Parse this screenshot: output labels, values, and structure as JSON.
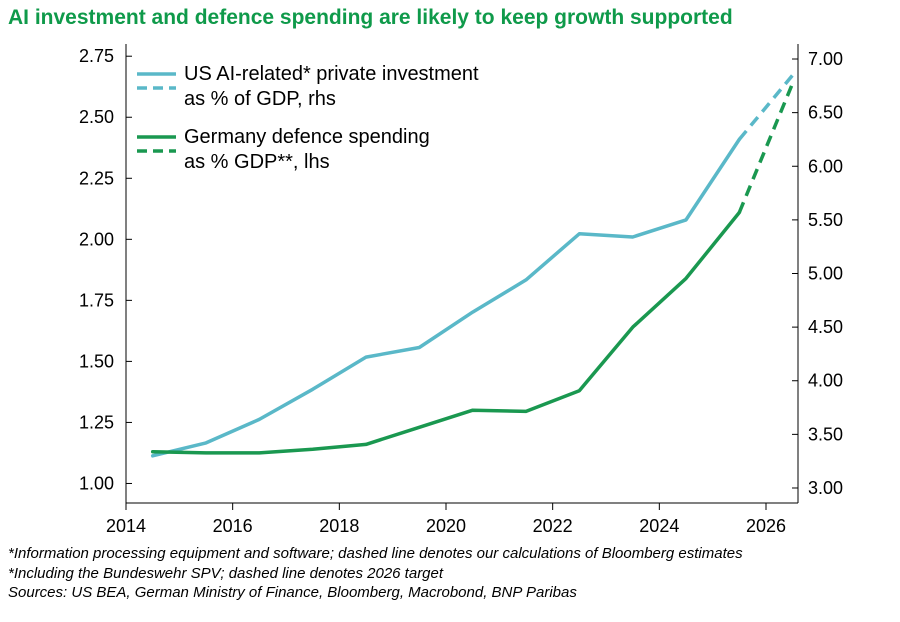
{
  "title": "AI investment and defence spending are likely to keep growth supported",
  "chart_data": {
    "type": "line",
    "x_ticks": [
      2014,
      2016,
      2018,
      2020,
      2022,
      2024,
      2026
    ],
    "xlim": [
      2014,
      2026.6
    ],
    "left_axis": {
      "ylim": [
        0.92,
        2.8
      ],
      "ticks": [
        "1.00",
        "1.25",
        "1.50",
        "1.75",
        "2.00",
        "2.25",
        "2.50",
        "2.75"
      ]
    },
    "right_axis": {
      "ylim": [
        2.86,
        7.14
      ],
      "ticks": [
        "3.00",
        "3.50",
        "4.00",
        "4.50",
        "5.00",
        "5.50",
        "6.00",
        "6.50",
        "7.00"
      ]
    },
    "series": [
      {
        "name": "US AI-related* private investment as % of GDP, rhs",
        "legend_lines": [
          "US AI-related* private investment",
          "as % of GDP, rhs"
        ],
        "axis": "right",
        "color": "#5ab8c8",
        "x": [
          2014.5,
          2015.5,
          2016.5,
          2017.5,
          2018.5,
          2019.5,
          2020.5,
          2021.5,
          2022.5,
          2023.5,
          2024.5,
          2025.5
        ],
        "y": [
          3.3,
          3.42,
          3.64,
          3.92,
          4.22,
          4.31,
          4.64,
          4.94,
          5.37,
          5.34,
          5.5,
          6.25
        ],
        "projection_x": [
          2025.5,
          2026.5
        ],
        "projection_y": [
          6.25,
          6.85
        ]
      },
      {
        "name": "Germany defence spending as % GDP**, lhs",
        "legend_lines": [
          "Germany defence spending",
          "as % GDP**, lhs"
        ],
        "axis": "left",
        "color": "#1a9850",
        "x": [
          2014.5,
          2015.5,
          2016.5,
          2017.5,
          2018.5,
          2019.5,
          2020.5,
          2021.5,
          2022.5,
          2023.5,
          2024.5,
          2025.5
        ],
        "y": [
          1.13,
          1.125,
          1.125,
          1.14,
          1.16,
          1.23,
          1.3,
          1.295,
          1.38,
          1.64,
          1.84,
          2.11
        ],
        "projection_x": [
          2025.5,
          2026.5
        ],
        "projection_y": [
          2.11,
          2.64
        ]
      }
    ]
  },
  "footnotes": [
    "*Information processing equipment and software; dashed line denotes our calculations of Bloomberg estimates",
    "*Including the Bundeswehr SPV; dashed line denotes 2026 target",
    "Sources: US BEA, German Ministry of Finance, Bloomberg, Macrobond, BNP Paribas"
  ]
}
